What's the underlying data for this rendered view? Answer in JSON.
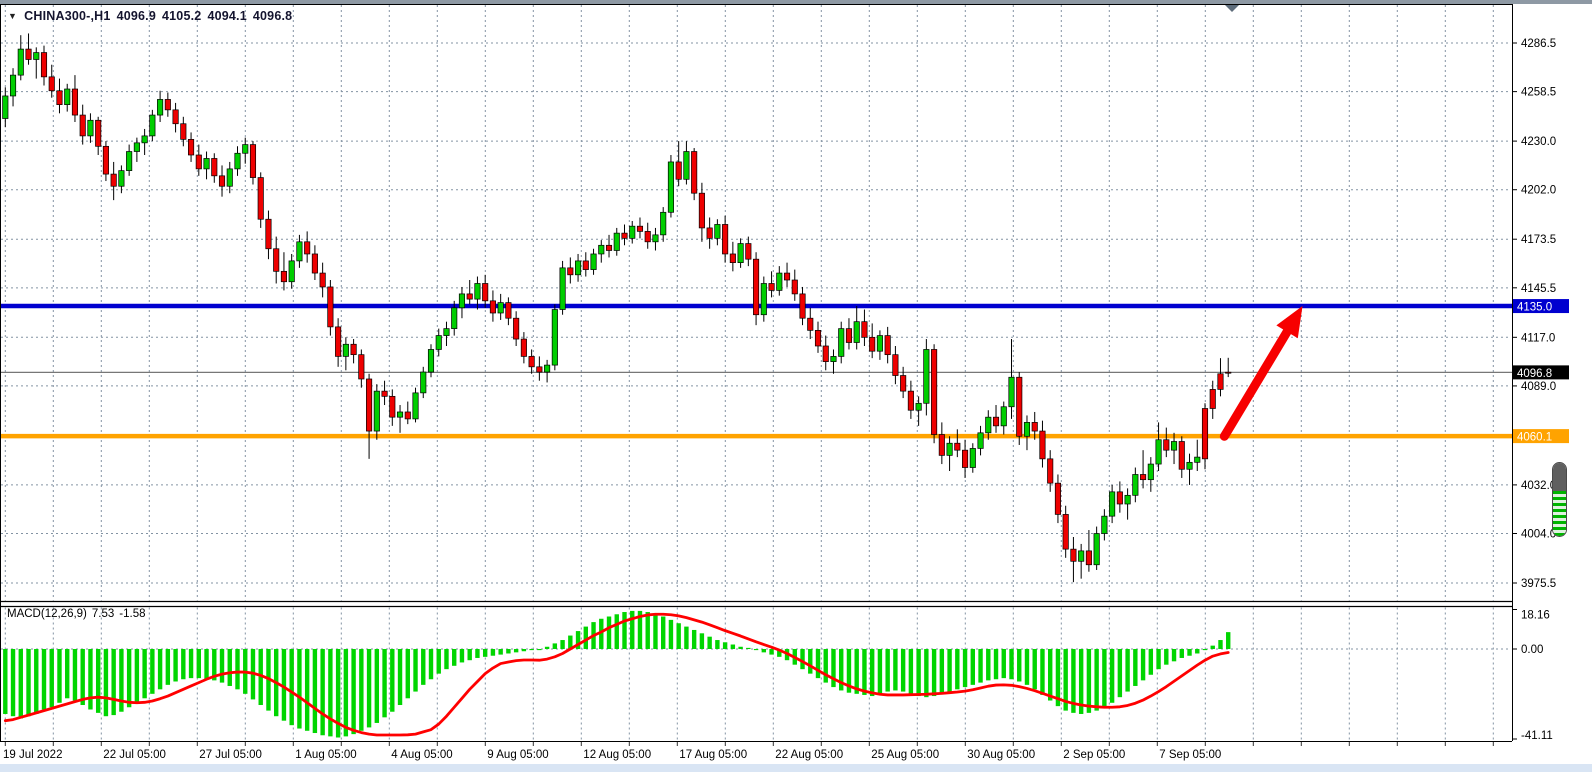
{
  "header": {
    "symbol_period": "CHINA300-,H1",
    "open": "4096.9",
    "high": "4105.2",
    "low": "4094.1",
    "close": "4096.8"
  },
  "chart_data": {
    "type": "candlestick",
    "title": "CHINA300-,H1",
    "symbol": "CHINA300-",
    "timeframe": "H1",
    "last_bar": {
      "open": 4096.9,
      "high": 4105.2,
      "low": 4094.1,
      "close": 4096.8
    },
    "grid": true,
    "price_axis": {
      "values": [
        4286.5,
        4258.5,
        4230.0,
        4202.0,
        4173.5,
        4145.5,
        4117.0,
        4089.0,
        4060.5,
        4032.0,
        4004.0,
        3975.5
      ],
      "labels": [
        "4286.5",
        "4258.5",
        "4230.0",
        "4202.0",
        "4173.5",
        "4145.5",
        "4117.0",
        "4089.0",
        "",
        "4032.0",
        "4004.0",
        "3975.5"
      ],
      "range": [
        3955,
        4300
      ]
    },
    "time_axis": {
      "labels": [
        "19 Jul 2022",
        "22 Jul 05:00",
        "27 Jul 05:00",
        "1 Aug 05:00",
        "4 Aug 05:00",
        "9 Aug 05:00",
        "12 Aug 05:00",
        "17 Aug 05:00",
        "22 Aug 05:00",
        "25 Aug 05:00",
        "30 Aug 05:00",
        "2 Sep 05:00",
        "7 Sep 05:00"
      ]
    },
    "levels": {
      "resistance": {
        "value": 4135.0,
        "label": "4135.0",
        "color": "#0000CF"
      },
      "support": {
        "value": 4060.1,
        "label": "4060.1",
        "color": "#FFA300"
      },
      "current_price": {
        "value": 4096.8,
        "label": "4096.8",
        "line_color": "#777777",
        "box_color": "#000000"
      }
    },
    "colors": {
      "up": "#00CE00",
      "down": "#EE0000",
      "wick": "#000000",
      "grid": "#8393A3",
      "arrow": "#F70000"
    },
    "candles": [
      [
        4243,
        4261,
        4238,
        4256
      ],
      [
        4256,
        4272,
        4250,
        4268
      ],
      [
        4268,
        4291,
        4265,
        4283
      ],
      [
        4283,
        4292,
        4274,
        4277
      ],
      [
        4277,
        4284,
        4266,
        4281
      ],
      [
        4281,
        4285,
        4262,
        4267
      ],
      [
        4267,
        4274,
        4255,
        4259
      ],
      [
        4259,
        4266,
        4246,
        4251
      ],
      [
        4251,
        4263,
        4247,
        4260
      ],
      [
        4260,
        4268,
        4241,
        4245
      ],
      [
        4245,
        4251,
        4228,
        4233
      ],
      [
        4233,
        4246,
        4229,
        4242
      ],
      [
        4242,
        4244,
        4222,
        4227
      ],
      [
        4227,
        4230,
        4207,
        4211
      ],
      [
        4211,
        4218,
        4196,
        4204
      ],
      [
        4204,
        4216,
        4200,
        4213
      ],
      [
        4213,
        4228,
        4210,
        4224
      ],
      [
        4224,
        4232,
        4218,
        4229
      ],
      [
        4229,
        4237,
        4222,
        4233
      ],
      [
        4233,
        4248,
        4230,
        4245
      ],
      [
        4245,
        4259,
        4241,
        4254
      ],
      [
        4254,
        4258,
        4244,
        4248
      ],
      [
        4248,
        4252,
        4235,
        4240
      ],
      [
        4240,
        4244,
        4227,
        4231
      ],
      [
        4231,
        4235,
        4218,
        4222
      ],
      [
        4222,
        4228,
        4210,
        4214
      ],
      [
        4214,
        4224,
        4208,
        4220
      ],
      [
        4220,
        4223,
        4206,
        4210
      ],
      [
        4210,
        4216,
        4198,
        4204
      ],
      [
        4204,
        4218,
        4200,
        4214
      ],
      [
        4214,
        4227,
        4210,
        4223
      ],
      [
        4223,
        4232,
        4217,
        4228
      ],
      [
        4228,
        4230,
        4205,
        4209
      ],
      [
        4209,
        4212,
        4180,
        4185
      ],
      [
        4185,
        4190,
        4162,
        4168
      ],
      [
        4168,
        4175,
        4148,
        4155
      ],
      [
        4155,
        4166,
        4144,
        4149
      ],
      [
        4149,
        4165,
        4145,
        4161
      ],
      [
        4161,
        4176,
        4157,
        4172
      ],
      [
        4172,
        4178,
        4160,
        4165
      ],
      [
        4165,
        4170,
        4150,
        4154
      ],
      [
        4154,
        4160,
        4140,
        4146
      ],
      [
        4146,
        4150,
        4118,
        4123
      ],
      [
        4123,
        4128,
        4100,
        4106
      ],
      [
        4106,
        4117,
        4098,
        4113
      ],
      [
        4113,
        4116,
        4102,
        4107
      ],
      [
        4107,
        4110,
        4088,
        4093
      ],
      [
        4093,
        4096,
        4047,
        4063
      ],
      [
        4063,
        4090,
        4058,
        4086
      ],
      [
        4086,
        4092,
        4078,
        4083
      ],
      [
        4083,
        4087,
        4066,
        4071
      ],
      [
        4071,
        4078,
        4062,
        4074
      ],
      [
        4074,
        4080,
        4067,
        4070
      ],
      [
        4070,
        4088,
        4068,
        4085
      ],
      [
        4085,
        4100,
        4082,
        4097
      ],
      [
        4097,
        4113,
        4094,
        4110
      ],
      [
        4110,
        4122,
        4106,
        4118
      ],
      [
        4118,
        4126,
        4112,
        4122
      ],
      [
        4122,
        4138,
        4118,
        4134
      ],
      [
        4134,
        4146,
        4128,
        4142
      ],
      [
        4142,
        4150,
        4136,
        4139
      ],
      [
        4139,
        4152,
        4133,
        4148
      ],
      [
        4148,
        4153,
        4134,
        4138
      ],
      [
        4138,
        4144,
        4126,
        4131
      ],
      [
        4131,
        4142,
        4127,
        4137
      ],
      [
        4137,
        4140,
        4124,
        4128
      ],
      [
        4128,
        4132,
        4112,
        4116
      ],
      [
        4116,
        4120,
        4102,
        4106
      ],
      [
        4106,
        4110,
        4096,
        4100
      ],
      [
        4100,
        4106,
        4092,
        4097
      ],
      [
        4097,
        4104,
        4091,
        4101
      ],
      [
        4101,
        4136,
        4098,
        4133
      ],
      [
        4133,
        4161,
        4130,
        4157
      ],
      [
        4157,
        4163,
        4148,
        4153
      ],
      [
        4153,
        4165,
        4149,
        4161
      ],
      [
        4161,
        4166,
        4152,
        4156
      ],
      [
        4156,
        4168,
        4153,
        4165
      ],
      [
        4165,
        4173,
        4160,
        4170
      ],
      [
        4170,
        4176,
        4163,
        4167
      ],
      [
        4167,
        4180,
        4164,
        4177
      ],
      [
        4177,
        4182,
        4170,
        4174
      ],
      [
        4174,
        4184,
        4171,
        4181
      ],
      [
        4181,
        4186,
        4174,
        4178
      ],
      [
        4178,
        4183,
        4168,
        4172
      ],
      [
        4172,
        4180,
        4167,
        4176
      ],
      [
        4176,
        4192,
        4172,
        4189
      ],
      [
        4189,
        4222,
        4186,
        4218
      ],
      [
        4218,
        4230,
        4204,
        4208
      ],
      [
        4208,
        4230,
        4205,
        4224
      ],
      [
        4224,
        4226,
        4196,
        4200
      ],
      [
        4200,
        4206,
        4172,
        4180
      ],
      [
        4180,
        4186,
        4168,
        4174
      ],
      [
        4174,
        4185,
        4170,
        4182
      ],
      [
        4182,
        4187,
        4160,
        4165
      ],
      [
        4165,
        4172,
        4155,
        4160
      ],
      [
        4160,
        4174,
        4157,
        4171
      ],
      [
        4171,
        4175,
        4158,
        4162
      ],
      [
        4162,
        4166,
        4124,
        4130
      ],
      [
        4130,
        4152,
        4126,
        4148
      ],
      [
        4148,
        4155,
        4140,
        4144
      ],
      [
        4144,
        4158,
        4141,
        4154
      ],
      [
        4154,
        4160,
        4146,
        4150
      ],
      [
        4150,
        4156,
        4138,
        4142
      ],
      [
        4142,
        4146,
        4124,
        4128
      ],
      [
        4128,
        4134,
        4116,
        4121
      ],
      [
        4121,
        4126,
        4108,
        4112
      ],
      [
        4112,
        4118,
        4098,
        4103
      ],
      [
        4103,
        4110,
        4096,
        4106
      ],
      [
        4106,
        4126,
        4102,
        4122
      ],
      [
        4122,
        4128,
        4110,
        4114
      ],
      [
        4114,
        4135,
        4110,
        4126
      ],
      [
        4126,
        4133,
        4112,
        4117
      ],
      [
        4117,
        4125,
        4105,
        4109
      ],
      [
        4109,
        4121,
        4104,
        4118
      ],
      [
        4118,
        4123,
        4102,
        4107
      ],
      [
        4107,
        4112,
        4090,
        4095
      ],
      [
        4095,
        4100,
        4082,
        4086
      ],
      [
        4086,
        4092,
        4070,
        4075
      ],
      [
        4075,
        4083,
        4066,
        4079
      ],
      [
        4079,
        4116,
        4072,
        4110
      ],
      [
        4110,
        4113,
        4056,
        4061
      ],
      [
        4061,
        4068,
        4044,
        4049
      ],
      [
        4049,
        4060,
        4040,
        4056
      ],
      [
        4056,
        4064,
        4048,
        4052
      ],
      [
        4052,
        4058,
        4036,
        4042
      ],
      [
        4042,
        4056,
        4039,
        4053
      ],
      [
        4053,
        4066,
        4049,
        4062
      ],
      [
        4062,
        4075,
        4058,
        4071
      ],
      [
        4071,
        4078,
        4062,
        4066
      ],
      [
        4066,
        4080,
        4061,
        4077
      ],
      [
        4077,
        4116,
        4070,
        4094
      ],
      [
        4094,
        4097,
        4055,
        4060
      ],
      [
        4060,
        4072,
        4052,
        4068
      ],
      [
        4068,
        4074,
        4058,
        4063
      ],
      [
        4063,
        4069,
        4042,
        4047
      ],
      [
        4047,
        4052,
        4028,
        4033
      ],
      [
        4033,
        4038,
        4010,
        4015
      ],
      [
        4015,
        4020,
        3990,
        3995
      ],
      [
        3995,
        4002,
        3976,
        3988
      ],
      [
        3988,
        3998,
        3978,
        3994
      ],
      [
        3994,
        4006,
        3982,
        3986
      ],
      [
        3986,
        4008,
        3983,
        4004
      ],
      [
        4004,
        4018,
        4000,
        4014
      ],
      [
        4014,
        4032,
        4010,
        4028
      ],
      [
        4028,
        4034,
        4016,
        4021
      ],
      [
        4021,
        4030,
        4012,
        4026
      ],
      [
        4026,
        4042,
        4022,
        4038
      ],
      [
        4038,
        4052,
        4030,
        4035
      ],
      [
        4035,
        4048,
        4028,
        4044
      ],
      [
        4044,
        4068,
        4040,
        4058
      ],
      [
        4058,
        4065,
        4048,
        4052
      ],
      [
        4052,
        4062,
        4044,
        4057
      ],
      [
        4057,
        4060,
        4036,
        4041
      ],
      [
        4041,
        4050,
        4032,
        4045
      ],
      [
        4045,
        4058,
        4040,
        4048
      ],
      [
        4076,
        4079,
        4041,
        4047
      ],
      [
        4087,
        4092,
        4070,
        4076
      ],
      [
        4096,
        4105,
        4083,
        4087
      ],
      [
        4096.9,
        4105.2,
        4094.1,
        4096.8
      ]
    ],
    "macd": {
      "label": "MACD(12,26,9)",
      "main_value_text": "7.53",
      "signal_value_text": "-1.58",
      "axis_ticks": [
        {
          "value": 18.16,
          "label": "18.16"
        },
        {
          "value": 0,
          "label": "0.00"
        },
        {
          "value": -41.11,
          "label": "-41.11"
        }
      ],
      "hist_color": "#00D500",
      "signal_color": "#FF0000",
      "histogram": [
        -29,
        -30,
        -31,
        -30,
        -29,
        -27,
        -26,
        -24,
        -22,
        -23,
        -25,
        -27,
        -28.5,
        -30,
        -29.5,
        -28,
        -26,
        -24,
        -22,
        -20,
        -18,
        -16,
        -14.5,
        -13.5,
        -13,
        -13,
        -13.5,
        -14,
        -15,
        -16.5,
        -18,
        -20,
        -22.5,
        -25,
        -27.5,
        -30,
        -32,
        -34,
        -35.5,
        -36.5,
        -37.5,
        -38.5,
        -39,
        -39.5,
        -39,
        -38,
        -36.5,
        -35,
        -33,
        -30.5,
        -28,
        -25,
        -22,
        -19,
        -16,
        -13.5,
        -11,
        -9,
        -7.5,
        -6,
        -5,
        -4,
        -3.5,
        -3,
        -2.5,
        -2,
        -1.5,
        -1,
        -0.5,
        -0.5,
        1,
        2.5,
        4,
        6,
        8,
        10,
        12,
        13.5,
        14.5,
        15.5,
        16.5,
        17,
        17,
        16.5,
        15.5,
        14.5,
        13,
        11.5,
        10,
        8.5,
        7,
        5.5,
        4,
        3,
        2,
        1,
        0.5,
        -0.5,
        -1.5,
        -2.5,
        -3.5,
        -5,
        -7,
        -9,
        -11,
        -13,
        -15,
        -17,
        -18.5,
        -19.5,
        -20,
        -20.5,
        -21,
        -20,
        -19,
        -18.5,
        -19,
        -20,
        -21,
        -21.5,
        -21,
        -20,
        -19,
        -18,
        -17,
        -16,
        -15,
        -14,
        -13.5,
        -13,
        -13.5,
        -14.5,
        -16,
        -18,
        -20.5,
        -23,
        -25.5,
        -27.5,
        -28.5,
        -29,
        -28.5,
        -27.5,
        -26,
        -24,
        -21.5,
        -19,
        -16.5,
        -14,
        -11.5,
        -9,
        -7,
        -5.5,
        -4,
        -3,
        -2,
        -0.5,
        1.5,
        4,
        7.53
      ],
      "signal": [
        -32,
        -31.5,
        -30.5,
        -29.5,
        -28.5,
        -27.5,
        -26.5,
        -25.5,
        -24.5,
        -23.5,
        -22.5,
        -21.8,
        -21.5,
        -21.8,
        -22.5,
        -23.2,
        -23.8,
        -24,
        -23.8,
        -23.2,
        -22.2,
        -21,
        -19.5,
        -18,
        -16.5,
        -15,
        -13.5,
        -12.2,
        -11.2,
        -10.6,
        -10.3,
        -10.3,
        -10.8,
        -11.8,
        -13.2,
        -15,
        -17,
        -19.2,
        -21.5,
        -24,
        -26.5,
        -29,
        -31.2,
        -33.2,
        -35,
        -36.3,
        -37.3,
        -38,
        -38.4,
        -38.4,
        -38.4,
        -38.4,
        -38.3,
        -38,
        -37,
        -36,
        -33.5,
        -30,
        -26,
        -22,
        -18,
        -14.5,
        -11,
        -8.5,
        -6.5,
        -5.8,
        -5.2,
        -4.9,
        -4.9,
        -5,
        -4.5,
        -3.5,
        -2,
        0,
        2,
        4,
        6,
        7.6,
        9.5,
        11,
        12.5,
        13.5,
        14.5,
        15.2,
        15.5,
        15.5,
        15.3,
        14.8,
        14,
        13,
        12,
        10.8,
        9.5,
        8.2,
        7,
        5.8,
        4.5,
        3.2,
        2,
        0.8,
        -0.5,
        -2,
        -3.8,
        -5.6,
        -7.5,
        -9.5,
        -11.5,
        -13.3,
        -15,
        -16.5,
        -17.8,
        -18.8,
        -19.6,
        -20.2,
        -20.5,
        -20.5,
        -20.5,
        -20.4,
        -20.3,
        -20.2,
        -20,
        -19.8,
        -19.5,
        -19.2,
        -18.8,
        -18.2,
        -17.4,
        -16.6,
        -16.1,
        -16,
        -16.2,
        -16.8,
        -17.6,
        -18.6,
        -19.8,
        -21,
        -22.2,
        -23.4,
        -24.3,
        -25,
        -25.5,
        -25.8,
        -26,
        -26,
        -25.8,
        -25.2,
        -24.2,
        -22.8,
        -21,
        -19,
        -16.8,
        -14.4,
        -12,
        -9.6,
        -7.2,
        -5,
        -3.2,
        -2.2,
        -1.58
      ]
    },
    "annotation_arrow": {
      "from_bar": 157.5,
      "from_price": 4060,
      "to_bar": 167.6,
      "to_price": 4135,
      "color": "#F70000"
    }
  }
}
